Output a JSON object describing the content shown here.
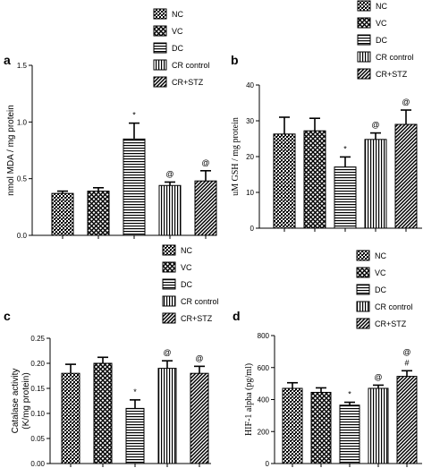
{
  "chart_data": [
    {
      "panel": "a",
      "type": "bar",
      "ylabel": "nmol MDA / mg protein",
      "ylim": [
        0,
        1.5
      ],
      "yticks": [
        "0.0",
        "0.5",
        "1.0",
        "1.5"
      ],
      "categories": [
        "NC",
        "VC",
        "DC",
        "CR control",
        "CR+STZ"
      ],
      "values": [
        0.37,
        0.39,
        0.85,
        0.44,
        0.48
      ],
      "errors": [
        0.02,
        0.03,
        0.14,
        0.03,
        0.09
      ],
      "annotations": [
        "",
        "",
        "*",
        "@",
        "@"
      ]
    },
    {
      "panel": "b",
      "type": "bar",
      "ylabel": "uM GSH / mg protein",
      "ylim": [
        0,
        40
      ],
      "yticks": [
        "0",
        "10",
        "20",
        "30",
        "40"
      ],
      "categories": [
        "NC",
        "VC",
        "DC",
        "CR control",
        "CR+STZ"
      ],
      "values": [
        26.3,
        27.2,
        17.1,
        24.8,
        29.0
      ],
      "errors": [
        4.7,
        3.5,
        2.8,
        1.8,
        4.0
      ],
      "annotations": [
        "",
        "",
        "*",
        "@",
        "@"
      ]
    },
    {
      "panel": "c",
      "type": "bar",
      "ylabel": "Catalase activity (K/mg protein)",
      "ylabel_lines": [
        "Catalase activity",
        "(K/mg protein)"
      ],
      "ylim": [
        0,
        0.25
      ],
      "yticks": [
        "0.00",
        "0.05",
        "0.10",
        "0.15",
        "0.20",
        "0.25"
      ],
      "categories": [
        "NC",
        "VC",
        "DC",
        "CR control",
        "CR+STZ"
      ],
      "values": [
        0.18,
        0.2,
        0.11,
        0.19,
        0.18
      ],
      "errors": [
        0.018,
        0.012,
        0.017,
        0.015,
        0.014
      ],
      "annotations": [
        "",
        "",
        "*",
        "@",
        "@"
      ]
    },
    {
      "panel": "d",
      "type": "bar",
      "ylabel": "HIF-1 alpha (pg/ml)",
      "ylim": [
        0,
        800
      ],
      "yticks": [
        "0",
        "200",
        "400",
        "600",
        "800"
      ],
      "categories": [
        "NC",
        "VC",
        "DC",
        "CR control",
        "CR+STZ"
      ],
      "values": [
        470,
        445,
        365,
        470,
        545
      ],
      "errors": [
        35,
        28,
        18,
        20,
        35
      ],
      "annotations": [
        "",
        "",
        "*",
        "@",
        "@ #"
      ]
    }
  ],
  "legend": [
    "NC",
    "VC",
    "DC",
    "CR control",
    "CR+STZ"
  ],
  "colors": {
    "ink": "#000000",
    "background": "#ffffff"
  }
}
